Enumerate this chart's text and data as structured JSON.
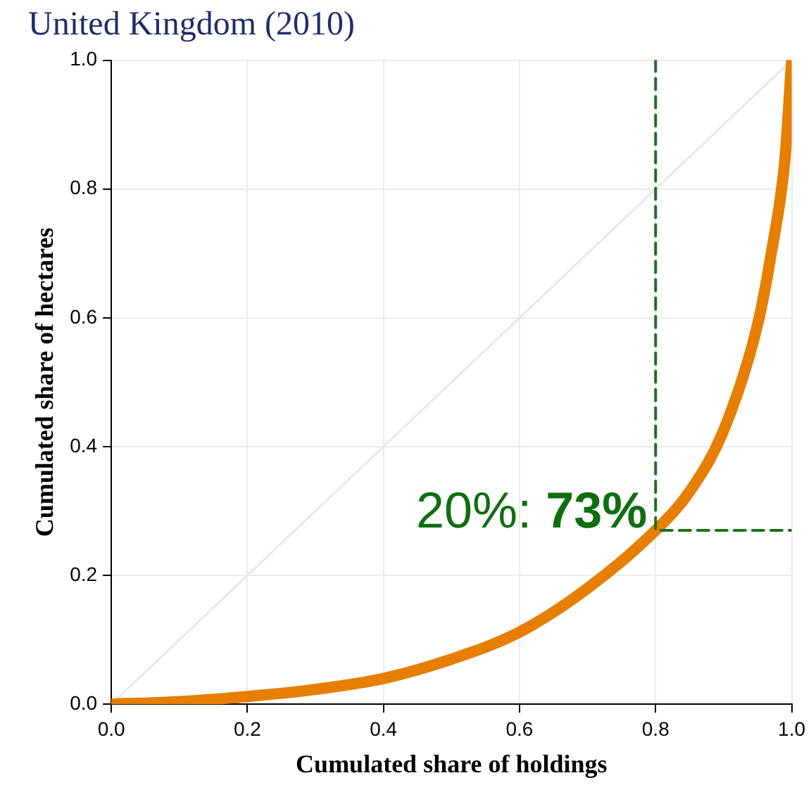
{
  "chart_data": {
    "type": "line",
    "title": "United Kingdom (2010)",
    "xlabel": "Cumulated share of holdings",
    "ylabel": "Cumulated share of hectares",
    "xlim": [
      0,
      1
    ],
    "ylim": [
      0,
      1
    ],
    "xticks": [
      {
        "value": 0,
        "label": "0.0"
      },
      {
        "value": 0.2,
        "label": "0.2"
      },
      {
        "value": 0.4,
        "label": "0.4"
      },
      {
        "value": 0.6,
        "label": "0.6"
      },
      {
        "value": 0.8,
        "label": "0.8"
      },
      {
        "value": 1,
        "label": "1.0"
      }
    ],
    "yticks": [
      {
        "value": 0,
        "label": "0.0"
      },
      {
        "value": 0.2,
        "label": "0.2"
      },
      {
        "value": 0.4,
        "label": "0.4"
      },
      {
        "value": 0.6,
        "label": "0.6"
      },
      {
        "value": 0.8,
        "label": "0.8"
      },
      {
        "value": 1,
        "label": "1.0"
      }
    ],
    "grid": true,
    "legend": false,
    "marker": "none",
    "series": [
      {
        "color": "#e8e8e8",
        "x": [
          0,
          1
        ],
        "values": [
          0,
          1
        ],
        "line_style": "solid"
      },
      {
        "color": "#e67e00",
        "x": [
          0,
          0.1,
          0.2,
          0.3,
          0.4,
          0.5,
          0.6,
          0.7,
          0.8,
          0.85,
          0.9,
          0.95,
          0.97,
          0.99,
          1
        ],
        "values": [
          0,
          0.004,
          0.012,
          0.023,
          0.04,
          0.07,
          0.112,
          0.18,
          0.27,
          0.33,
          0.425,
          0.59,
          0.7,
          0.845,
          1
        ],
        "line_style": "solid"
      },
      {
        "color": "#1e6e1e",
        "x": [
          0.8,
          0.8,
          1
        ],
        "values": [
          1,
          0.27,
          0.27
        ],
        "line_style": "dashed"
      }
    ],
    "annotations": [
      {
        "text": "20%: 73%",
        "x": 0.8,
        "y": 0.27
      }
    ]
  }
}
